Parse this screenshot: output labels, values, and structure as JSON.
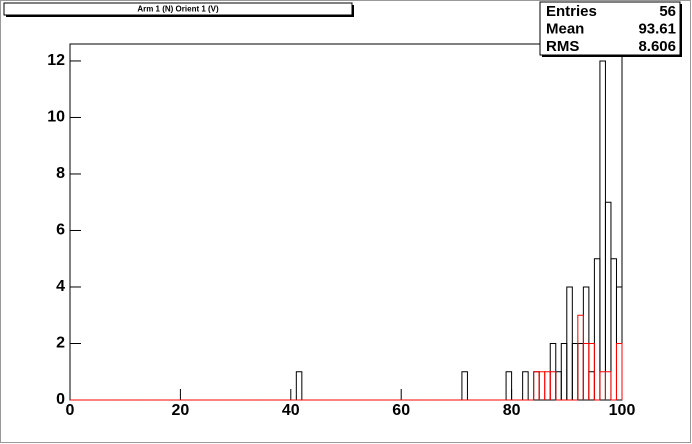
{
  "chart_data": {
    "type": "histogram",
    "title": "Arm 1 (N) Orient 1 (V)",
    "bins": [
      0,
      1,
      2,
      3,
      4,
      5,
      6,
      7,
      8,
      9,
      10,
      11,
      12,
      13,
      14,
      15,
      16,
      17,
      18,
      19,
      20,
      21,
      22,
      23,
      24,
      25,
      26,
      27,
      28,
      29,
      30,
      31,
      32,
      33,
      34,
      35,
      36,
      37,
      38,
      39,
      40,
      41,
      42,
      43,
      44,
      45,
      46,
      47,
      48,
      49,
      50,
      51,
      52,
      53,
      54,
      55,
      56,
      57,
      58,
      59,
      60,
      61,
      62,
      63,
      64,
      65,
      66,
      67,
      68,
      69,
      70,
      71,
      72,
      73,
      74,
      75,
      76,
      77,
      78,
      79,
      80,
      81,
      82,
      83,
      84,
      85,
      86,
      87,
      88,
      89,
      90,
      91,
      92,
      93,
      94,
      95,
      96,
      97,
      98,
      99,
      100
    ],
    "series": [
      {
        "color": "#000000",
        "values": [
          0,
          0,
          0,
          0,
          0,
          0,
          0,
          0,
          0,
          0,
          0,
          0,
          0,
          0,
          0,
          0,
          0,
          0,
          0,
          0,
          0,
          0,
          0,
          0,
          0,
          0,
          0,
          0,
          0,
          0,
          0,
          0,
          0,
          0,
          0,
          0,
          0,
          0,
          0,
          0,
          0,
          1,
          0,
          0,
          0,
          0,
          0,
          0,
          0,
          0,
          0,
          0,
          0,
          0,
          0,
          0,
          0,
          0,
          0,
          0,
          0,
          0,
          0,
          0,
          0,
          0,
          0,
          0,
          0,
          0,
          0,
          1,
          0,
          0,
          0,
          0,
          0,
          0,
          0,
          1,
          0,
          0,
          1,
          0,
          1,
          0,
          0,
          2,
          1,
          2,
          4,
          2,
          2,
          4,
          1,
          5,
          12,
          7,
          5,
          4
        ]
      },
      {
        "color": "#ff0000",
        "values": [
          0,
          0,
          0,
          0,
          0,
          0,
          0,
          0,
          0,
          0,
          0,
          0,
          0,
          0,
          0,
          0,
          0,
          0,
          0,
          0,
          0,
          0,
          0,
          0,
          0,
          0,
          0,
          0,
          0,
          0,
          0,
          0,
          0,
          0,
          0,
          0,
          0,
          0,
          0,
          0,
          0,
          0,
          0,
          0,
          0,
          0,
          0,
          0,
          0,
          0,
          0,
          0,
          0,
          0,
          0,
          0,
          0,
          0,
          0,
          0,
          0,
          0,
          0,
          0,
          0,
          0,
          0,
          0,
          0,
          0,
          0,
          0,
          0,
          0,
          0,
          0,
          0,
          0,
          0,
          0,
          0,
          0,
          0,
          0,
          1,
          1,
          1,
          1,
          0,
          0,
          0,
          0,
          3,
          2,
          2,
          0,
          1,
          1,
          0,
          2
        ]
      }
    ],
    "xlim": [
      0,
      100
    ],
    "xticks": [
      0,
      20,
      40,
      60,
      80,
      100
    ],
    "ylim": [
      0,
      12.6
    ],
    "yticks": [
      0,
      2,
      4,
      6,
      8,
      10,
      12
    ],
    "stats": {
      "labels": [
        "Entries",
        "Mean",
        "RMS"
      ],
      "values": [
        56,
        93.61,
        8.606
      ]
    }
  }
}
